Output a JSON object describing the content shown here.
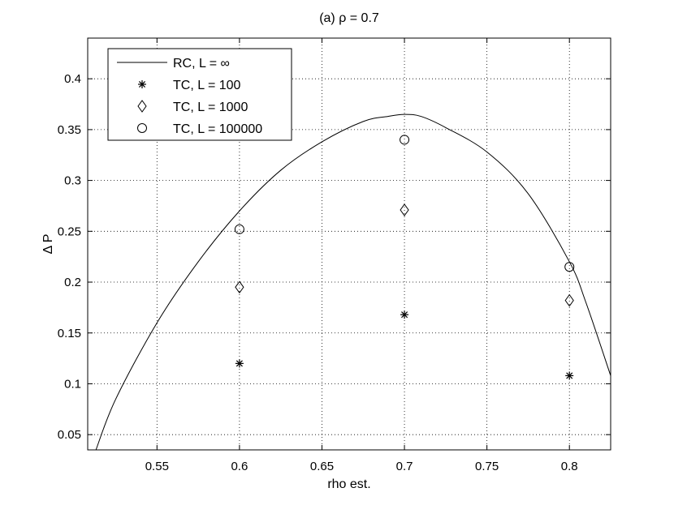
{
  "chart_data": {
    "type": "scatter",
    "title": "(a) ρ = 0.7",
    "xlabel": "rho est.",
    "ylabel": "Δ P",
    "xlim": [
      0.508,
      0.825
    ],
    "ylim": [
      0.035,
      0.44
    ],
    "xticks": [
      0.55,
      0.6,
      0.65,
      0.7,
      0.75,
      0.8
    ],
    "xtick_labels": [
      "0.55",
      "0.6",
      "0.65",
      "0.7",
      "0.75",
      "0.8"
    ],
    "yticks": [
      0.05,
      0.1,
      0.15,
      0.2,
      0.25,
      0.3,
      0.35,
      0.4
    ],
    "ytick_labels": [
      "0.05",
      "0.1",
      "0.15",
      "0.2",
      "0.25",
      "0.3",
      "0.35",
      "0.4"
    ],
    "grid": true,
    "legend_position": "top-left",
    "series": [
      {
        "name": "RC, L = ∞",
        "style": "line",
        "x": [
          0.513,
          0.525,
          0.55,
          0.575,
          0.6,
          0.625,
          0.65,
          0.675,
          0.69,
          0.7,
          0.71,
          0.725,
          0.75,
          0.775,
          0.8,
          0.81,
          0.825
        ],
        "y": [
          0.035,
          0.085,
          0.16,
          0.22,
          0.27,
          0.31,
          0.338,
          0.358,
          0.363,
          0.365,
          0.363,
          0.352,
          0.328,
          0.287,
          0.22,
          0.18,
          0.108
        ]
      },
      {
        "name": "TC, L = 100",
        "style": "star",
        "x": [
          0.6,
          0.7,
          0.8
        ],
        "y": [
          0.12,
          0.168,
          0.108
        ]
      },
      {
        "name": "TC, L = 1000",
        "style": "diamond",
        "x": [
          0.6,
          0.7,
          0.8
        ],
        "y": [
          0.195,
          0.271,
          0.182
        ]
      },
      {
        "name": "TC, L = 100000",
        "style": "circle",
        "x": [
          0.6,
          0.7,
          0.8
        ],
        "y": [
          0.252,
          0.34,
          0.215
        ]
      }
    ]
  }
}
